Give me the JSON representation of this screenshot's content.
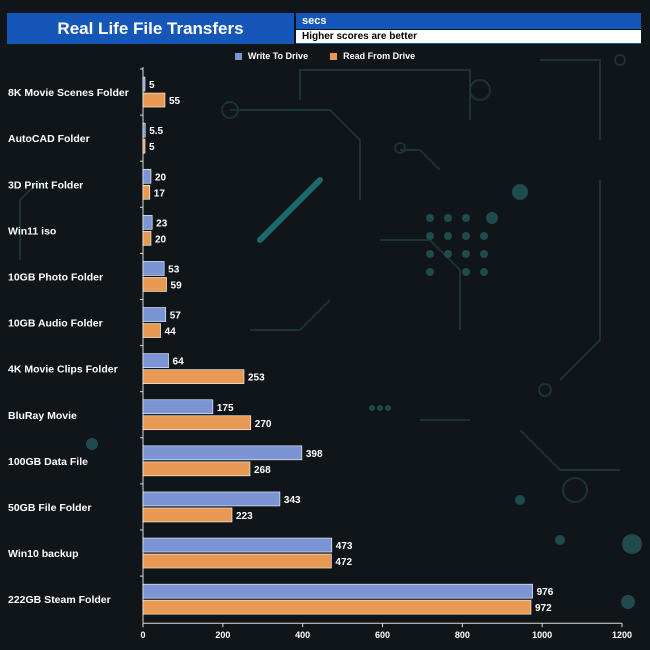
{
  "header": {
    "title": "Real Life File Transfers",
    "unit": "secs",
    "note": "Higher scores are better"
  },
  "colors": {
    "write": "#7b95d4",
    "read": "#e89a55",
    "title_bg": "#1457b8"
  },
  "chart_data": {
    "type": "bar",
    "orientation": "horizontal",
    "title": "Real Life File Transfers",
    "xlabel": "",
    "ylabel": "",
    "xlim": [
      0,
      1200
    ],
    "xticks": [
      0,
      200,
      400,
      600,
      800,
      1000,
      1200
    ],
    "legend_position": "top-center",
    "grid": false,
    "categories": [
      "8K Movie Scenes Folder",
      "AutoCAD Folder",
      "3D Print Folder",
      "Win11 iso",
      "10GB Photo Folder",
      "10GB Audio Folder",
      "4K Movie Clips Folder",
      "BluRay Movie",
      "100GB Data File",
      "50GB File Folder",
      "Win10 backup",
      "222GB Steam Folder"
    ],
    "series": [
      {
        "name": "Write To  Drive",
        "values": [
          5,
          5.5,
          20,
          23,
          53,
          57,
          64,
          175,
          398,
          343,
          473,
          976
        ]
      },
      {
        "name": "Read From  Drive",
        "values": [
          55,
          5,
          17,
          20,
          59,
          44,
          253,
          270,
          268,
          223,
          472,
          972
        ]
      }
    ]
  }
}
